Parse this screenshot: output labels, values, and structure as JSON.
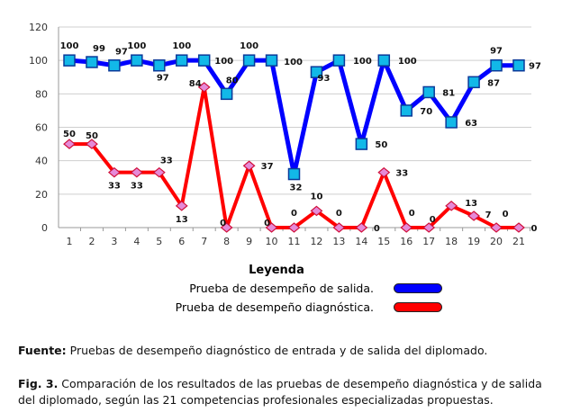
{
  "chart_data": {
    "type": "line",
    "title": "",
    "x": [
      1,
      2,
      3,
      4,
      5,
      6,
      7,
      8,
      9,
      10,
      11,
      12,
      13,
      14,
      15,
      16,
      17,
      18,
      19,
      20,
      21
    ],
    "ylim": [
      0,
      120
    ],
    "yticks": [
      0,
      20,
      40,
      60,
      80,
      100,
      120
    ],
    "grid": true,
    "series": [
      {
        "name": "Prueba de desempeño de salida.",
        "color": "#0000ff",
        "marker": "square",
        "values": [
          100,
          99,
          97,
          100,
          97,
          100,
          100,
          80,
          100,
          100,
          32,
          93,
          100,
          50,
          100,
          70,
          81,
          63,
          87,
          97,
          97
        ]
      },
      {
        "name": "Prueba de desempeño diagnóstica.",
        "color": "#ff0000",
        "marker": "diamond",
        "values": [
          50,
          50,
          33,
          33,
          33,
          13,
          84,
          0,
          37,
          0,
          0,
          10,
          0,
          0,
          33,
          0,
          0,
          13,
          7,
          0,
          0
        ]
      }
    ],
    "legend": {
      "title": "Leyenda",
      "placement": "bottom"
    }
  },
  "source": {
    "label": "Fuente:",
    "text": " Pruebas de desempeño diagnóstico de entrada y de salida del diplomado."
  },
  "caption": {
    "label": "Fig. 3.",
    "text": " Comparación de los resultados de las pruebas de desempeño diagnóstica y de salida del diplomado, según las 21 competencias profesionales especializadas propuestas."
  }
}
